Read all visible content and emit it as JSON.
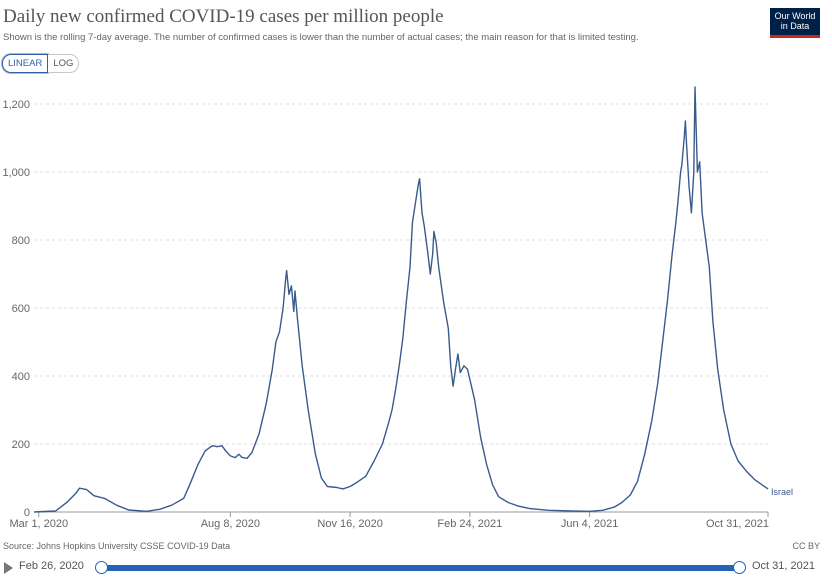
{
  "header": {
    "title": "Daily new confirmed COVID-19 cases per million people",
    "subtitle": "Shown is the rolling 7-day average. The number of confirmed cases is lower than the number of actual cases; the main reason for that is limited testing.",
    "logo_line1": "Our World",
    "logo_line2": "in Data"
  },
  "controls": {
    "linear_label": "LINEAR",
    "log_label": "LOG",
    "active_scale": "linear"
  },
  "footer": {
    "source": "Source: Johns Hopkins University CSSE COVID-19 Data",
    "license": "CC BY"
  },
  "timeline": {
    "start_label": "Feb 26, 2020",
    "end_label": "Oct 31, 2021",
    "start_fraction": 0,
    "end_fraction": 1
  },
  "colors": {
    "line": "#3a5a8c",
    "grid": "#dddddd",
    "accent": "#2563b6",
    "logo_bg": "#002147",
    "logo_bar": "#ce261e"
  },
  "chart_data": {
    "type": "line",
    "xlabel": "",
    "ylabel": "",
    "ylim": [
      0,
      1200
    ],
    "yticks": [
      0,
      200,
      400,
      600,
      800,
      1000,
      1200
    ],
    "ytick_labels": [
      "0",
      "200",
      "400",
      "600",
      "800",
      "1,000",
      "1,200"
    ],
    "xlim": [
      "2020-02-26",
      "2021-10-31"
    ],
    "xticks": [
      "2020-03-01",
      "2020-08-08",
      "2020-11-16",
      "2021-02-24",
      "2021-06-04",
      "2021-10-31"
    ],
    "xtick_labels": [
      "Mar 1, 2020",
      "Aug 8, 2020",
      "Nov 16, 2020",
      "Feb 24, 2021",
      "Jun 4, 2021",
      "Oct 31, 2021"
    ],
    "grid": true,
    "series": [
      {
        "name": "Israel",
        "points": [
          [
            "2020-02-26",
            0
          ],
          [
            "2020-03-15",
            3
          ],
          [
            "2020-03-25",
            30
          ],
          [
            "2020-04-01",
            55
          ],
          [
            "2020-04-04",
            70
          ],
          [
            "2020-04-10",
            66
          ],
          [
            "2020-04-16",
            48
          ],
          [
            "2020-04-25",
            40
          ],
          [
            "2020-05-05",
            20
          ],
          [
            "2020-05-15",
            6
          ],
          [
            "2020-05-30",
            2
          ],
          [
            "2020-06-10",
            8
          ],
          [
            "2020-06-20",
            20
          ],
          [
            "2020-06-30",
            40
          ],
          [
            "2020-07-05",
            80
          ],
          [
            "2020-07-12",
            140
          ],
          [
            "2020-07-18",
            180
          ],
          [
            "2020-07-24",
            195
          ],
          [
            "2020-07-28",
            192
          ],
          [
            "2020-08-01",
            195
          ],
          [
            "2020-08-04",
            180
          ],
          [
            "2020-08-08",
            165
          ],
          [
            "2020-08-12",
            160
          ],
          [
            "2020-08-15",
            170
          ],
          [
            "2020-08-18",
            160
          ],
          [
            "2020-08-22",
            158
          ],
          [
            "2020-08-26",
            175
          ],
          [
            "2020-09-01",
            230
          ],
          [
            "2020-09-07",
            320
          ],
          [
            "2020-09-12",
            420
          ],
          [
            "2020-09-15",
            500
          ],
          [
            "2020-09-18",
            530
          ],
          [
            "2020-09-21",
            600
          ],
          [
            "2020-09-23",
            680
          ],
          [
            "2020-09-24",
            710
          ],
          [
            "2020-09-26",
            640
          ],
          [
            "2020-09-28",
            665
          ],
          [
            "2020-09-30",
            590
          ],
          [
            "2020-10-01",
            650
          ],
          [
            "2020-10-03",
            570
          ],
          [
            "2020-10-07",
            430
          ],
          [
            "2020-10-12",
            300
          ],
          [
            "2020-10-18",
            170
          ],
          [
            "2020-10-23",
            100
          ],
          [
            "2020-10-28",
            75
          ],
          [
            "2020-11-05",
            72
          ],
          [
            "2020-11-10",
            68
          ],
          [
            "2020-11-16",
            75
          ],
          [
            "2020-11-22",
            88
          ],
          [
            "2020-11-29",
            105
          ],
          [
            "2020-12-06",
            150
          ],
          [
            "2020-12-13",
            200
          ],
          [
            "2020-12-18",
            260
          ],
          [
            "2020-12-21",
            300
          ],
          [
            "2020-12-24",
            360
          ],
          [
            "2020-12-27",
            430
          ],
          [
            "2020-12-30",
            510
          ],
          [
            "2021-01-02",
            620
          ],
          [
            "2021-01-05",
            720
          ],
          [
            "2021-01-07",
            850
          ],
          [
            "2021-01-10",
            920
          ],
          [
            "2021-01-12",
            965
          ],
          [
            "2021-01-13",
            980
          ],
          [
            "2021-01-15",
            880
          ],
          [
            "2021-01-17",
            840
          ],
          [
            "2021-01-20",
            760
          ],
          [
            "2021-01-22",
            700
          ],
          [
            "2021-01-24",
            760
          ],
          [
            "2021-01-25",
            825
          ],
          [
            "2021-01-27",
            790
          ],
          [
            "2021-01-29",
            720
          ],
          [
            "2021-02-02",
            620
          ],
          [
            "2021-02-06",
            540
          ],
          [
            "2021-02-08",
            430
          ],
          [
            "2021-02-10",
            370
          ],
          [
            "2021-02-12",
            420
          ],
          [
            "2021-02-14",
            465
          ],
          [
            "2021-02-16",
            410
          ],
          [
            "2021-02-19",
            430
          ],
          [
            "2021-02-22",
            420
          ],
          [
            "2021-02-28",
            330
          ],
          [
            "2021-03-05",
            220
          ],
          [
            "2021-03-10",
            140
          ],
          [
            "2021-03-15",
            80
          ],
          [
            "2021-03-20",
            45
          ],
          [
            "2021-03-28",
            28
          ],
          [
            "2021-04-05",
            18
          ],
          [
            "2021-04-15",
            10
          ],
          [
            "2021-05-01",
            5
          ],
          [
            "2021-05-20",
            3
          ],
          [
            "2021-06-04",
            2
          ],
          [
            "2021-06-15",
            5
          ],
          [
            "2021-06-25",
            15
          ],
          [
            "2021-07-01",
            28
          ],
          [
            "2021-07-08",
            50
          ],
          [
            "2021-07-14",
            90
          ],
          [
            "2021-07-20",
            170
          ],
          [
            "2021-07-26",
            270
          ],
          [
            "2021-07-31",
            380
          ],
          [
            "2021-08-04",
            500
          ],
          [
            "2021-08-08",
            620
          ],
          [
            "2021-08-12",
            760
          ],
          [
            "2021-08-15",
            850
          ],
          [
            "2021-08-17",
            920
          ],
          [
            "2021-08-19",
            1000
          ],
          [
            "2021-08-20",
            1020
          ],
          [
            "2021-08-22",
            1100
          ],
          [
            "2021-08-23",
            1150
          ],
          [
            "2021-08-24",
            1080
          ],
          [
            "2021-08-26",
            960
          ],
          [
            "2021-08-28",
            880
          ],
          [
            "2021-08-30",
            1000
          ],
          [
            "2021-08-31",
            1250
          ],
          [
            "2021-09-02",
            1000
          ],
          [
            "2021-09-04",
            1030
          ],
          [
            "2021-09-06",
            880
          ],
          [
            "2021-09-09",
            800
          ],
          [
            "2021-09-12",
            720
          ],
          [
            "2021-09-15",
            560
          ],
          [
            "2021-09-19",
            420
          ],
          [
            "2021-09-24",
            300
          ],
          [
            "2021-09-30",
            200
          ],
          [
            "2021-10-06",
            150
          ],
          [
            "2021-10-13",
            120
          ],
          [
            "2021-10-20",
            95
          ],
          [
            "2021-10-26",
            80
          ],
          [
            "2021-10-31",
            68
          ]
        ]
      }
    ]
  }
}
